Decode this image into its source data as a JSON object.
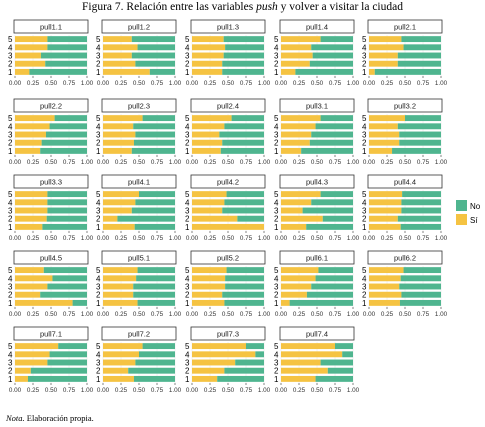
{
  "figure": {
    "title_prefix": "Figura 7. Relación entre las variables ",
    "title_italic": "push",
    "title_suffix": " y volver a visitar la ciudad",
    "note_label": "Nota.",
    "note_text": " Elaboración propia."
  },
  "colors": {
    "No": "#4fb58f",
    "Sí": "#f5c342"
  },
  "chart_data": {
    "type": "bar",
    "orientation": "horizontal",
    "stacked": "percent",
    "categories": [
      "1",
      "2",
      "3",
      "4",
      "5"
    ],
    "xlim": [
      0,
      1
    ],
    "x_ticks": [
      "0.00",
      "0.25",
      "0.50",
      "0.75",
      "1.00"
    ],
    "legend": {
      "position": "right",
      "entries": [
        "No",
        "Sí"
      ]
    },
    "grid": true,
    "facets": [
      {
        "name": "pull1.1",
        "si": [
          0.2,
          0.42,
          0.36,
          0.45,
          0.45
        ]
      },
      {
        "name": "pull1.2",
        "si": [
          0.65,
          0.45,
          0.4,
          0.48,
          0.4
        ]
      },
      {
        "name": "pull1.3",
        "si": [
          0.42,
          0.42,
          0.44,
          0.46,
          0.44
        ]
      },
      {
        "name": "pull1.4",
        "si": [
          0.2,
          0.4,
          0.44,
          0.42,
          0.55
        ]
      },
      {
        "name": "pull2.1",
        "si": [
          0.08,
          0.4,
          0.4,
          0.48,
          0.45
        ]
      },
      {
        "name": "pull2.2",
        "si": [
          0.35,
          0.37,
          0.43,
          0.48,
          0.55
        ]
      },
      {
        "name": "pull2.3",
        "si": [
          0.4,
          0.43,
          0.45,
          0.42,
          0.55
        ]
      },
      {
        "name": "pull2.4",
        "si": [
          0.4,
          0.42,
          0.38,
          0.45,
          0.55
        ]
      },
      {
        "name": "pull3.1",
        "si": [
          0.28,
          0.4,
          0.42,
          0.48,
          0.55
        ]
      },
      {
        "name": "pull3.2",
        "si": [
          0.32,
          0.42,
          0.42,
          0.4,
          0.5
        ]
      },
      {
        "name": "pull3.3",
        "si": [
          0.38,
          0.44,
          0.45,
          0.45,
          0.45
        ]
      },
      {
        "name": "pull4.1",
        "si": [
          0.44,
          0.2,
          0.4,
          0.45,
          0.5
        ]
      },
      {
        "name": "pull4.2",
        "si": [
          1.0,
          0.63,
          0.42,
          0.45,
          0.48
        ]
      },
      {
        "name": "pull4.3",
        "si": [
          0.35,
          0.58,
          0.3,
          0.42,
          0.55
        ]
      },
      {
        "name": "pull4.4",
        "si": [
          0.44,
          0.4,
          0.45,
          0.45,
          0.46
        ]
      },
      {
        "name": "pull4.5",
        "si": [
          0.8,
          0.35,
          0.45,
          0.52,
          0.4
        ]
      },
      {
        "name": "pull5.1",
        "si": [
          0.48,
          0.42,
          0.42,
          0.46,
          0.48
        ]
      },
      {
        "name": "pull5.2",
        "si": [
          0.45,
          0.42,
          0.46,
          0.46,
          0.48
        ]
      },
      {
        "name": "pull6.1",
        "si": [
          0.12,
          0.36,
          0.42,
          0.48,
          0.52
        ]
      },
      {
        "name": "pull6.2",
        "si": [
          0.43,
          0.45,
          0.42,
          0.44,
          0.48
        ]
      },
      {
        "name": "pull7.1",
        "si": [
          0.18,
          0.22,
          0.45,
          0.48,
          0.6
        ]
      },
      {
        "name": "pull7.2",
        "si": [
          0.43,
          0.35,
          0.45,
          0.5,
          0.55
        ]
      },
      {
        "name": "pull7.3",
        "si": [
          0.35,
          0.45,
          0.6,
          0.88,
          0.75
        ]
      },
      {
        "name": "pull7.4",
        "si": [
          0.48,
          0.65,
          0.55,
          0.85,
          0.75
        ]
      }
    ]
  }
}
